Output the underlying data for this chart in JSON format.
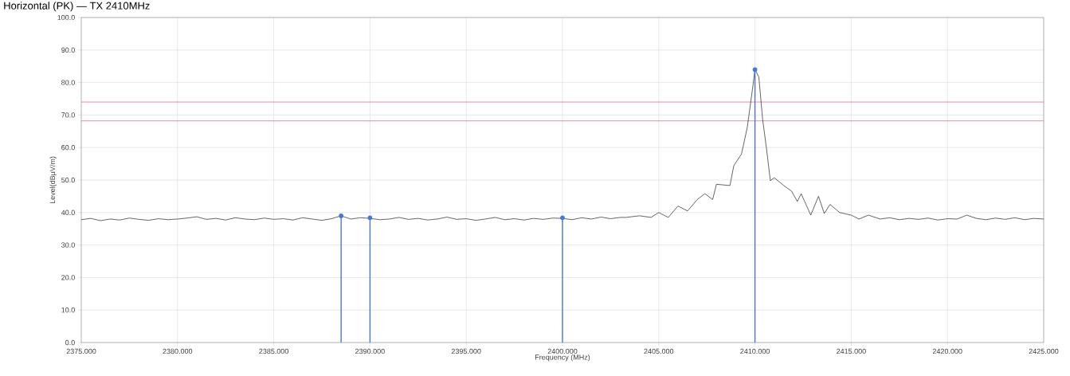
{
  "chart_data": {
    "type": "line",
    "title": "Horizontal (PK) — TX 2410MHz",
    "xlabel": "Frequency (MHz)",
    "ylabel": "Level(dBμV/m)",
    "xlim": [
      2375,
      2425
    ],
    "ylim": [
      0,
      100
    ],
    "xticks": [
      {
        "value": 2375,
        "label": "2375.000"
      },
      {
        "value": 2380,
        "label": "2380.000"
      },
      {
        "value": 2385,
        "label": "2385.000"
      },
      {
        "value": 2390,
        "label": "2390.000"
      },
      {
        "value": 2395,
        "label": "2395.000"
      },
      {
        "value": 2400,
        "label": "2400.000"
      },
      {
        "value": 2405,
        "label": "2405.000"
      },
      {
        "value": 2410,
        "label": "2410.000"
      },
      {
        "value": 2415,
        "label": "2415.000"
      },
      {
        "value": 2420,
        "label": "2420.000"
      },
      {
        "value": 2425,
        "label": "2425.000"
      }
    ],
    "yticks": [
      {
        "value": 0,
        "label": "0.0"
      },
      {
        "value": 10,
        "label": "10.0"
      },
      {
        "value": 20,
        "label": "20.0"
      },
      {
        "value": 30,
        "label": "30.0"
      },
      {
        "value": 40,
        "label": "40.0"
      },
      {
        "value": 50,
        "label": "50.0"
      },
      {
        "value": 60,
        "label": "60.0"
      },
      {
        "value": 70,
        "label": "70.0"
      },
      {
        "value": 80,
        "label": "80.0"
      },
      {
        "value": 90,
        "label": "90.0"
      },
      {
        "value": 100,
        "label": "100.0"
      }
    ],
    "grid": true,
    "ref_lines": [
      {
        "axis": "y",
        "value": 74,
        "color": "#e07080"
      },
      {
        "axis": "y",
        "value": 68.2,
        "color": "#e07080"
      }
    ],
    "series": [
      {
        "color": "#222222",
        "x": [
          2375,
          2375.5,
          2376,
          2376.5,
          2377,
          2377.5,
          2378,
          2378.5,
          2379,
          2379.5,
          2380,
          2380.5,
          2381,
          2381.5,
          2382,
          2382.5,
          2383,
          2383.5,
          2384,
          2384.5,
          2385,
          2385.5,
          2386,
          2386.5,
          2387,
          2387.5,
          2388,
          2388.5,
          2389,
          2389.5,
          2390,
          2390.5,
          2391,
          2391.5,
          2392,
          2392.5,
          2393,
          2393.5,
          2394,
          2394.5,
          2395,
          2395.5,
          2396,
          2396.5,
          2397,
          2397.5,
          2398,
          2398.5,
          2399,
          2399.5,
          2400,
          2400.5,
          2401,
          2401.5,
          2402,
          2402.5,
          2403,
          2403.3,
          2404,
          2404.6,
          2405,
          2405.5,
          2406,
          2406.5,
          2407,
          2407.4,
          2407.8,
          2408,
          2408.7,
          2408.9,
          2409.3,
          2409.6,
          2409.9,
          2410,
          2410.2,
          2410.4,
          2410.6,
          2410.8,
          2411,
          2411.5,
          2411.9,
          2412.2,
          2412.4,
          2412.9,
          2413.3,
          2413.6,
          2413.9,
          2414.4,
          2415,
          2415.4,
          2415.9,
          2416.5,
          2417,
          2417.5,
          2418,
          2418.5,
          2419,
          2419.5,
          2420,
          2420.5,
          2421,
          2421.5,
          2422,
          2422.5,
          2423,
          2423.5,
          2424,
          2424.5,
          2425
        ],
        "values": [
          37.8,
          38.2,
          37.5,
          38.0,
          37.7,
          38.3,
          37.9,
          37.6,
          38.1,
          37.8,
          38.0,
          38.3,
          38.7,
          37.9,
          38.2,
          37.7,
          38.4,
          38.0,
          37.8,
          38.3,
          37.9,
          38.1,
          37.7,
          38.4,
          38.0,
          37.6,
          38.1,
          39.0,
          38.0,
          38.4,
          38.2,
          37.8,
          38.0,
          38.5,
          37.9,
          38.2,
          37.7,
          38.0,
          38.6,
          37.9,
          38.1,
          37.6,
          38.0,
          38.5,
          37.8,
          38.1,
          37.7,
          38.2,
          37.9,
          38.3,
          38.2,
          37.8,
          38.4,
          38.0,
          38.6,
          38.1,
          38.5,
          38.5,
          39.0,
          38.5,
          40.0,
          38.5,
          42.0,
          40.5,
          44.0,
          45.8,
          44.0,
          48.7,
          48.3,
          54.4,
          58.0,
          66.2,
          79.3,
          84.0,
          81.7,
          68.6,
          59.6,
          49.8,
          50.7,
          48.3,
          46.6,
          43.4,
          45.8,
          39.2,
          45.0,
          39.7,
          42.5,
          40.0,
          39.2,
          38.0,
          39.2,
          38.0,
          38.4,
          37.8,
          38.2,
          37.9,
          38.3,
          37.7,
          38.1,
          38.0,
          39.2,
          38.2,
          37.8,
          38.3,
          37.9,
          38.4,
          37.8,
          38.2,
          38.0
        ]
      },
      {
        "type": "lollipop",
        "color": "#4a78d0",
        "marker": "circle",
        "x": [
          2388.5,
          2390,
          2400,
          2410
        ],
        "values": [
          39.0,
          38.4,
          38.4,
          84.0
        ]
      }
    ]
  }
}
